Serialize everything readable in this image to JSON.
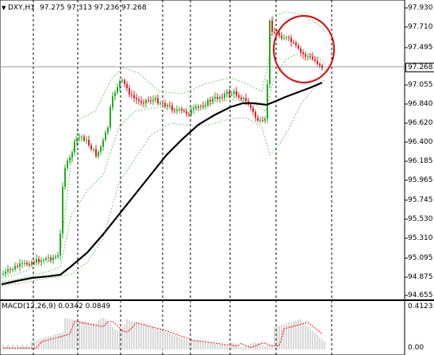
{
  "window": {
    "symbol_header": "DXY,H1",
    "ohlc": "97.275 97.313 97.236 97.268",
    "indicator_header": "MACD(12,26,9) 0.0342 0.0849"
  },
  "price_axis": {
    "ticks": [
      "97.930",
      "97.710",
      "97.495",
      "97.268",
      "97.055",
      "96.840",
      "96.620",
      "96.400",
      "96.185",
      "95.965",
      "95.745",
      "95.530",
      "95.310",
      "95.095",
      "94.875",
      "94.655"
    ],
    "current_price": "97.268"
  },
  "macd_axis": {
    "ticks": [
      "0.4123",
      "0.00"
    ]
  },
  "colors": {
    "bull": "#22aa22",
    "bear": "#dd2222",
    "ma": "#000000",
    "bands": "#55bb55",
    "grid": "#000000",
    "macd_hist": "#bdbdbd",
    "macd_signal": "#ff0000",
    "circle": "#dd1111"
  },
  "icons": {
    "chart_icon": "triangle-down"
  }
}
